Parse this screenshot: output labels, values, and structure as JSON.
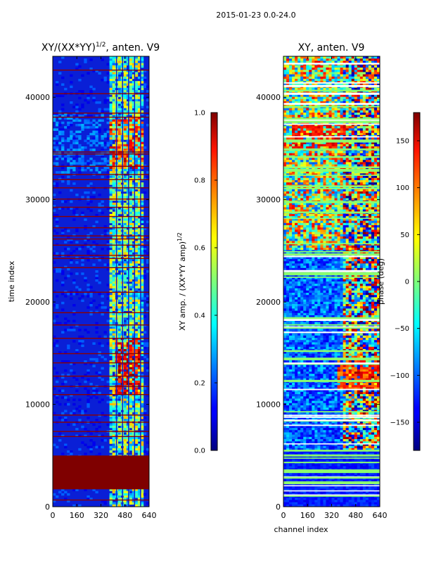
{
  "suptitle": "2015-01-23 0.0-24.0",
  "chart_data": [
    {
      "type": "heatmap",
      "title_main": "XY/(XX*YY)",
      "title_sup": "1/2",
      "title_rest": ", anten. V9",
      "xlabel": "",
      "ylabel": "time index",
      "xlim": [
        0,
        640
      ],
      "ylim": [
        0,
        44000
      ],
      "x_ticks": [
        "0",
        "160",
        "320",
        "480",
        "640"
      ],
      "y_ticks": [
        "0",
        "10000",
        "20000",
        "30000",
        "40000"
      ],
      "colorbar": {
        "label_main": "XY amp. / (XX*YY amp)",
        "label_sup": "1/2",
        "range": [
          0.0,
          1.0
        ],
        "ticks": [
          "0.0",
          "0.2",
          "0.4",
          "0.6",
          "0.8",
          "1.0"
        ],
        "colormap": "jet"
      },
      "description": "Normalized cross-correlation amplitude per channel and time; mostly low (~0.1) with high-amplitude bands in channels ~420-600 and saturated flagged rows near time 1700-5000."
    },
    {
      "type": "heatmap",
      "title_main": "XY, anten. V9",
      "title_sup": "",
      "title_rest": "",
      "xlabel": "channel index",
      "ylabel": "",
      "xlim": [
        0,
        640
      ],
      "ylim": [
        0,
        44000
      ],
      "x_ticks": [
        "0",
        "160",
        "320",
        "480",
        "640"
      ],
      "y_ticks": [
        "0",
        "10000",
        "20000",
        "30000",
        "40000"
      ],
      "colorbar": {
        "label_main": "phase (deg)",
        "label_sup": "",
        "range": [
          -180,
          180
        ],
        "ticks": [
          "−150",
          "−100",
          "−50",
          "0",
          "50",
          "100",
          "150"
        ],
        "colormap": "jet"
      },
      "description": "Cross-correlation phase per channel and time; noisy with many horizontal flagged rows."
    }
  ]
}
